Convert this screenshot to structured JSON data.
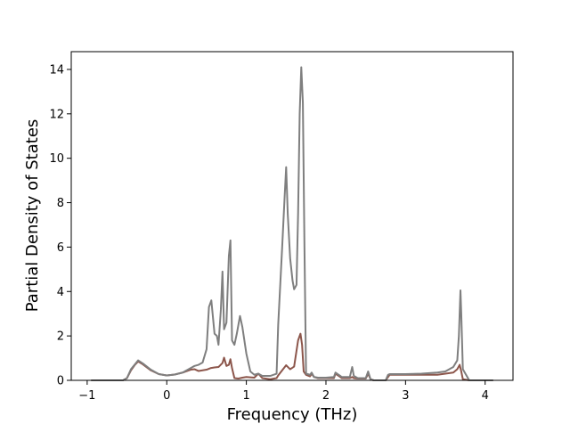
{
  "chart_data": {
    "type": "line",
    "xlabel": "Frequency (THz)",
    "ylabel": "Partial Density of States",
    "xlim": [
      -1.2,
      4.35
    ],
    "ylim": [
      0,
      14.8
    ],
    "xticks": [
      -1,
      0,
      1,
      2,
      3,
      4
    ],
    "xtick_labels": [
      "−1",
      "0",
      "1",
      "2",
      "3",
      "4"
    ],
    "yticks": [
      0,
      2,
      4,
      6,
      8,
      10,
      12,
      14
    ],
    "ytick_labels": [
      "0",
      "2",
      "4",
      "6",
      "8",
      "10",
      "12",
      "14"
    ],
    "grid": false,
    "legend": "none",
    "series": [
      {
        "color": "#8c564b",
        "x": [
          -0.95,
          -0.55,
          -0.5,
          -0.45,
          -0.4,
          -0.36,
          -0.3,
          -0.2,
          -0.1,
          0.0,
          0.1,
          0.2,
          0.3,
          0.35,
          0.4,
          0.5,
          0.55,
          0.6,
          0.65,
          0.7,
          0.72,
          0.75,
          0.78,
          0.8,
          0.82,
          0.85,
          0.9,
          0.95,
          1.0,
          1.1,
          1.15,
          1.2,
          1.3,
          1.38,
          1.4,
          1.45,
          1.5,
          1.55,
          1.6,
          1.65,
          1.68,
          1.7,
          1.72,
          1.75,
          1.8,
          1.82,
          1.85,
          1.9,
          2.0,
          2.1,
          2.12,
          2.2,
          2.3,
          2.33,
          2.35,
          2.4,
          2.5,
          2.53,
          2.56,
          2.6,
          2.75,
          2.8,
          3.0,
          3.2,
          3.4,
          3.5,
          3.6,
          3.65,
          3.68,
          3.7,
          3.72,
          3.8,
          4.1
        ],
        "y": [
          0,
          0,
          0.1,
          0.45,
          0.7,
          0.85,
          0.72,
          0.45,
          0.28,
          0.22,
          0.26,
          0.35,
          0.48,
          0.5,
          0.42,
          0.48,
          0.55,
          0.58,
          0.6,
          0.78,
          1.02,
          0.65,
          0.7,
          0.95,
          0.55,
          0.1,
          0.08,
          0.12,
          0.15,
          0.12,
          0.3,
          0.1,
          0.05,
          0.1,
          0.22,
          0.45,
          0.68,
          0.5,
          0.62,
          1.8,
          2.1,
          1.6,
          0.4,
          0.25,
          0.18,
          0.3,
          0.15,
          0.1,
          0.1,
          0.1,
          0.3,
          0.1,
          0.1,
          0.15,
          0.1,
          0.08,
          0.08,
          0.3,
          0.05,
          0,
          0,
          0.25,
          0.25,
          0.25,
          0.25,
          0.3,
          0.35,
          0.5,
          0.7,
          0.4,
          0.05,
          0,
          0
        ]
      },
      {
        "color": "#7f7f7f",
        "x": [
          -0.95,
          -0.55,
          -0.5,
          -0.45,
          -0.4,
          -0.36,
          -0.3,
          -0.2,
          -0.1,
          0.0,
          0.1,
          0.2,
          0.3,
          0.35,
          0.4,
          0.45,
          0.5,
          0.53,
          0.56,
          0.6,
          0.63,
          0.65,
          0.68,
          0.7,
          0.72,
          0.75,
          0.78,
          0.8,
          0.82,
          0.85,
          0.88,
          0.92,
          0.95,
          1.0,
          1.05,
          1.1,
          1.15,
          1.2,
          1.3,
          1.38,
          1.4,
          1.45,
          1.48,
          1.5,
          1.52,
          1.55,
          1.58,
          1.6,
          1.63,
          1.65,
          1.67,
          1.69,
          1.71,
          1.73,
          1.75,
          1.8,
          1.82,
          1.85,
          1.9,
          2.0,
          2.1,
          2.12,
          2.2,
          2.3,
          2.33,
          2.35,
          2.4,
          2.5,
          2.53,
          2.56,
          2.6,
          2.75,
          2.78,
          2.8,
          3.0,
          3.2,
          3.4,
          3.5,
          3.55,
          3.6,
          3.65,
          3.67,
          3.69,
          3.7,
          3.72,
          3.8,
          4.1
        ],
        "y": [
          0,
          0,
          0.1,
          0.5,
          0.72,
          0.9,
          0.76,
          0.48,
          0.28,
          0.22,
          0.26,
          0.35,
          0.55,
          0.65,
          0.7,
          0.8,
          1.4,
          3.3,
          3.6,
          2.1,
          2.0,
          1.6,
          3.2,
          4.9,
          2.3,
          2.6,
          5.6,
          6.3,
          1.8,
          1.6,
          2.1,
          2.9,
          2.4,
          1.2,
          0.4,
          0.25,
          0.3,
          0.2,
          0.2,
          0.3,
          2.5,
          6.0,
          8.2,
          9.6,
          7.5,
          5.5,
          4.5,
          4.1,
          4.3,
          7.5,
          12.0,
          14.1,
          12.5,
          6.0,
          0.3,
          0.25,
          0.35,
          0.15,
          0.12,
          0.12,
          0.15,
          0.35,
          0.15,
          0.15,
          0.6,
          0.2,
          0.1,
          0.1,
          0.4,
          0.05,
          0,
          0,
          0.25,
          0.28,
          0.28,
          0.3,
          0.35,
          0.4,
          0.5,
          0.6,
          0.9,
          2.0,
          4.05,
          3.0,
          0.5,
          0,
          0
        ]
      }
    ]
  }
}
